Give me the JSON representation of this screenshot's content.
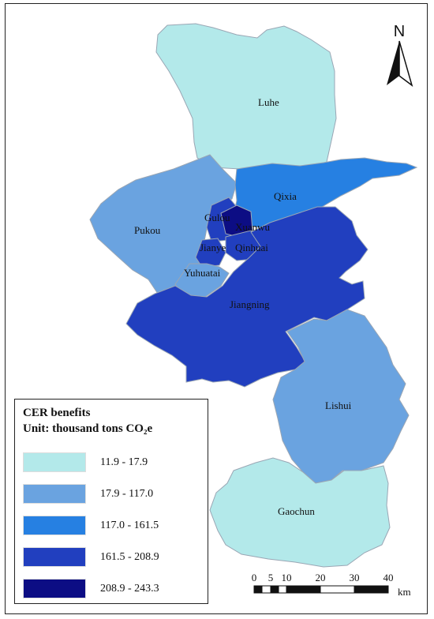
{
  "north_label": "N",
  "legend": {
    "title": "CER benefits",
    "unit": "Unit: thousand tons CO₂e",
    "classes": [
      {
        "range": "11.9 - 17.9",
        "color": "#b3e9ea"
      },
      {
        "range": "17.9 - 117.0",
        "color": "#6aa3e0"
      },
      {
        "range": "117.0 - 161.5",
        "color": "#2680e2"
      },
      {
        "range": "161.5 - 208.9",
        "color": "#213fbf"
      },
      {
        "range": "208.9 - 243.3",
        "color": "#0c0d84"
      }
    ]
  },
  "scale_bar": {
    "ticks": [
      "0",
      "5",
      "10",
      "20",
      "30",
      "40"
    ],
    "unit": "km"
  },
  "districts": {
    "luhe": "Luhe",
    "pukou": "Pukou",
    "qixia": "Qixia",
    "gulou": "Gulou",
    "xuanwu": "Xuanwu",
    "jianye": "Jianye",
    "qinhuai": "Qinhuai",
    "yuhuatai": "Yuhuatai",
    "jiangning": "Jiangning",
    "lishui": "Lishui",
    "gaochun": "Gaochun"
  }
}
